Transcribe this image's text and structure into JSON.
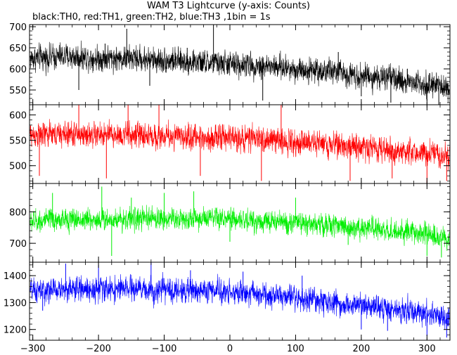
{
  "header": {
    "title": "WAM T3 Lightcurve (y-axis: Counts)",
    "subtitle": "black:TH0, red:TH1, green:TH2, blue:TH3 ,1bin = 1s"
  },
  "chart_data": {
    "type": "line",
    "x_axis": {
      "range": [
        -305,
        335
      ],
      "ticks": [
        -300,
        -200,
        -100,
        0,
        100,
        200,
        300
      ],
      "tick_labels": [
        "−300",
        "−200",
        "−100",
        "0",
        "100",
        "200",
        "300"
      ]
    },
    "colors": {
      "TH0": "#000000",
      "TH1": "#ff0000",
      "TH2": "#00ee00",
      "TH3": "#0000ff"
    },
    "panels": [
      {
        "series_key": "TH0",
        "color": "#000000",
        "ylim": [
          515,
          705
        ],
        "yticks": [
          550,
          600,
          650,
          700
        ],
        "trend_x": [
          -300,
          -250,
          -200,
          -150,
          -100,
          -50,
          0,
          50,
          100,
          150,
          200,
          250,
          300,
          330
        ],
        "trend_y": [
          625,
          630,
          625,
          625,
          620,
          615,
          612,
          607,
          600,
          595,
          585,
          575,
          565,
          555
        ],
        "noise": 30,
        "series_x": [
          -300,
          -230,
          -190,
          -157,
          -122,
          -65,
          -25,
          50,
          165,
          200,
          245,
          270,
          300,
          318
        ],
        "series_y": [
          625,
          550,
          660,
          695,
          560,
          650,
          705,
          525,
          640,
          535,
          520,
          600,
          525,
          510
        ]
      },
      {
        "series_key": "TH1",
        "color": "#ff0000",
        "ylim": [
          465,
          620
        ],
        "yticks": [
          500,
          550,
          600
        ],
        "trend_x": [
          -300,
          -250,
          -200,
          -150,
          -100,
          -50,
          0,
          50,
          100,
          150,
          200,
          250,
          300,
          330
        ],
        "trend_y": [
          560,
          562,
          560,
          560,
          558,
          556,
          555,
          552,
          548,
          543,
          537,
          530,
          525,
          520
        ],
        "noise": 25,
        "series_x": [
          -290,
          -230,
          -188,
          -155,
          -108,
          -45,
          48,
          78,
          183,
          247,
          300,
          330
        ],
        "series_y": [
          480,
          625,
          475,
          625,
          620,
          480,
          470,
          620,
          470,
          475,
          460,
          470
        ]
      },
      {
        "series_key": "TH2",
        "color": "#00ee00",
        "ylim": [
          640,
          890
        ],
        "yticks": [
          700,
          800
        ],
        "trend_x": [
          -300,
          -250,
          -200,
          -150,
          -100,
          -50,
          0,
          50,
          100,
          150,
          200,
          250,
          300,
          330
        ],
        "trend_y": [
          770,
          775,
          775,
          778,
          778,
          778,
          775,
          770,
          765,
          758,
          748,
          740,
          730,
          710
        ],
        "noise": 35,
        "series_x": [
          -300,
          -270,
          -195,
          -180,
          -150,
          -100,
          -55,
          0,
          100,
          180,
          220,
          300,
          322
        ],
        "series_y": [
          760,
          860,
          880,
          660,
          845,
          860,
          865,
          705,
          845,
          695,
          745,
          660,
          655
        ]
      },
      {
        "series_key": "TH3",
        "color": "#0000ff",
        "ylim": [
          1160,
          1450
        ],
        "yticks": [
          1200,
          1300,
          1400
        ],
        "trend_x": [
          -300,
          -250,
          -200,
          -150,
          -100,
          -50,
          0,
          50,
          100,
          150,
          200,
          250,
          300,
          330
        ],
        "trend_y": [
          1340,
          1350,
          1350,
          1350,
          1345,
          1345,
          1340,
          1330,
          1315,
          1300,
          1290,
          1275,
          1260,
          1240
        ],
        "noise": 45,
        "series_x": [
          -285,
          -250,
          -200,
          -120,
          -60,
          20,
          110,
          200,
          240,
          300,
          330
        ],
        "series_y": [
          1270,
          1445,
          1440,
          1450,
          1420,
          1415,
          1400,
          1200,
          1195,
          1175,
          1170
        ]
      }
    ]
  }
}
